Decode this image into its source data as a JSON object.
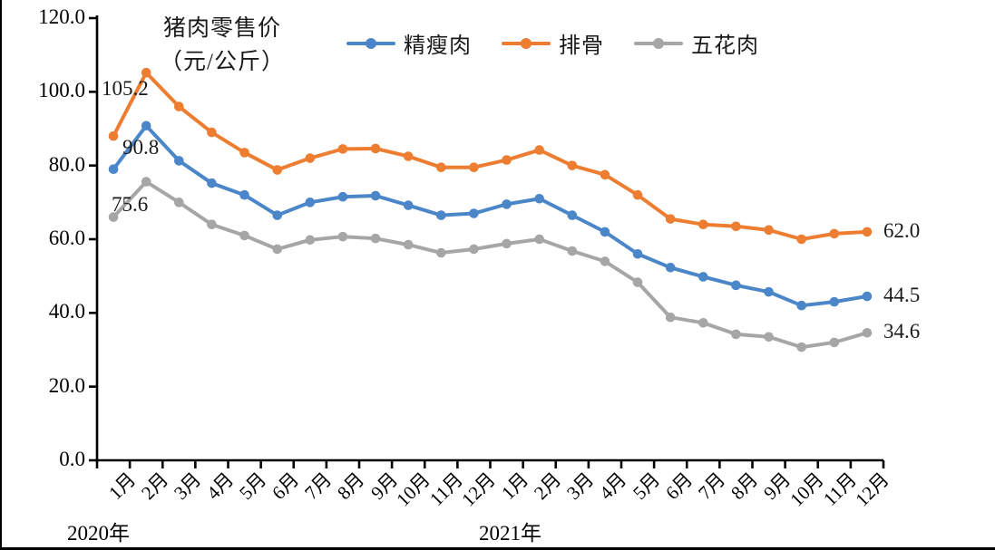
{
  "figure": {
    "title_line1": "猪肉零售价",
    "title_line2": "（元/公斤）"
  },
  "chart_data": {
    "type": "line",
    "title": "猪肉零售价（元/公斤）",
    "unit": "元/公斤",
    "grid": false,
    "legend_position": "top",
    "categories": [
      "1月",
      "2月",
      "3月",
      "4月",
      "5月",
      "6月",
      "7月",
      "8月",
      "9月",
      "10月",
      "11月",
      "12月",
      "1月",
      "2月",
      "3月",
      "4月",
      "5月",
      "6月",
      "7月",
      "8月",
      "9月",
      "10月",
      "11月",
      "12月"
    ],
    "x_year_groups": [
      {
        "label": "2020年",
        "start_index": 0
      },
      {
        "label": "2021年",
        "start_index": 12
      }
    ],
    "y_axis": {
      "min": 0,
      "max": 120,
      "tick_step": 20,
      "tick_labels": [
        "0.0",
        "20.0",
        "40.0",
        "60.0",
        "80.0",
        "100.0",
        "120.0"
      ]
    },
    "series": [
      {
        "key": "lean-pork",
        "name": "精瘦肉",
        "color": "#4A86C8",
        "end_label": "44.5",
        "values": [
          79.0,
          90.8,
          81.3,
          75.2,
          72.0,
          66.5,
          70.0,
          71.5,
          71.8,
          69.2,
          66.5,
          67.0,
          69.5,
          71.0,
          66.5,
          62.0,
          56.0,
          52.3,
          49.8,
          47.5,
          45.7,
          42.0,
          43.0,
          44.5
        ]
      },
      {
        "key": "ribs",
        "name": "排骨",
        "color": "#ED7D31",
        "end_label": "62.0",
        "values": [
          88.0,
          105.2,
          96.0,
          89.0,
          83.5,
          78.8,
          82.0,
          84.5,
          84.6,
          82.5,
          79.5,
          79.5,
          81.5,
          84.2,
          80.0,
          77.5,
          72.0,
          65.5,
          64.0,
          63.5,
          62.5,
          60.0,
          61.5,
          62.0
        ]
      },
      {
        "key": "pork-belly",
        "name": "五花肉",
        "color": "#A6A6A6",
        "end_label": "34.6",
        "values": [
          66.0,
          75.6,
          70.0,
          64.0,
          61.0,
          57.3,
          59.8,
          60.7,
          60.2,
          58.5,
          56.3,
          57.3,
          58.8,
          60.0,
          56.8,
          54.0,
          48.3,
          38.8,
          37.3,
          34.2,
          33.5,
          30.7,
          32.0,
          34.6
        ]
      }
    ],
    "point_labels": [
      {
        "series_key": "ribs",
        "text": "105.2",
        "x": 110,
        "y": 85
      },
      {
        "series_key": "lean-pork",
        "text": "90.8",
        "x": 133,
        "y": 150
      },
      {
        "series_key": "pork-belly",
        "text": "75.6",
        "x": 121,
        "y": 213
      }
    ]
  }
}
